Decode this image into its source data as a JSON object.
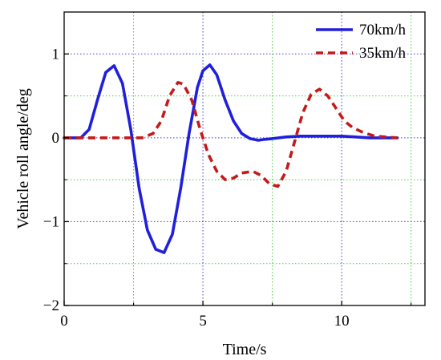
{
  "chart_data": {
    "type": "line",
    "xlabel": "Time/s",
    "ylabel": "Vehicle roll angle/deg",
    "xlim": [
      0,
      13
    ],
    "ylim": [
      -2,
      1.5
    ],
    "x_ticks": [
      0,
      5,
      10
    ],
    "y_ticks": [
      -2,
      -1,
      0,
      1
    ],
    "x_tick_labels": [
      "0",
      "5",
      "10"
    ],
    "y_tick_labels": [
      "−2",
      "−1",
      "0",
      "1"
    ],
    "grid": {
      "major_style": "dotted blue",
      "minor_style": "dotted green",
      "x_major": [
        5,
        10
      ],
      "x_minor": [
        2.5,
        7.5,
        12.5
      ],
      "y_major": [
        -1,
        0,
        1
      ],
      "y_minor": [
        -1.5,
        -0.5,
        0.5
      ]
    },
    "legend_position": "top-right",
    "series": [
      {
        "name": "70km/h",
        "color": "#1f1fdc",
        "style": "solid",
        "x": [
          0,
          0.6,
          0.9,
          1.2,
          1.5,
          1.8,
          2.1,
          2.4,
          2.7,
          3.0,
          3.3,
          3.6,
          3.9,
          4.2,
          4.5,
          4.8,
          5.0,
          5.25,
          5.5,
          5.8,
          6.1,
          6.4,
          6.7,
          7.0,
          7.2,
          7.5,
          8.0,
          8.5,
          9.0,
          9.5,
          10.0,
          10.5,
          11.0,
          12.0
        ],
        "y": [
          0,
          0.0,
          0.1,
          0.45,
          0.78,
          0.86,
          0.65,
          0.1,
          -0.6,
          -1.1,
          -1.33,
          -1.37,
          -1.15,
          -0.6,
          0.05,
          0.6,
          0.8,
          0.87,
          0.75,
          0.45,
          0.2,
          0.05,
          -0.01,
          -0.03,
          -0.02,
          -0.01,
          0.01,
          0.02,
          0.02,
          0.02,
          0.02,
          0.01,
          0.0,
          0.0
        ]
      },
      {
        "name": "35km/h",
        "color": "#c41a1a",
        "style": "dashed",
        "x": [
          0,
          1.0,
          2.0,
          2.8,
          3.2,
          3.5,
          3.8,
          4.1,
          4.3,
          4.6,
          4.9,
          5.2,
          5.5,
          5.8,
          6.1,
          6.4,
          6.8,
          7.1,
          7.4,
          7.7,
          8.0,
          8.3,
          8.6,
          8.9,
          9.2,
          9.5,
          9.8,
          10.1,
          10.4,
          10.8,
          11.2,
          11.6,
          12.0
        ],
        "y": [
          0,
          0.0,
          0.0,
          0.0,
          0.05,
          0.2,
          0.5,
          0.66,
          0.64,
          0.45,
          0.1,
          -0.2,
          -0.4,
          -0.5,
          -0.48,
          -0.42,
          -0.4,
          -0.45,
          -0.55,
          -0.58,
          -0.4,
          -0.05,
          0.3,
          0.52,
          0.58,
          0.5,
          0.35,
          0.2,
          0.12,
          0.06,
          0.02,
          0.01,
          0.0
        ]
      }
    ]
  }
}
